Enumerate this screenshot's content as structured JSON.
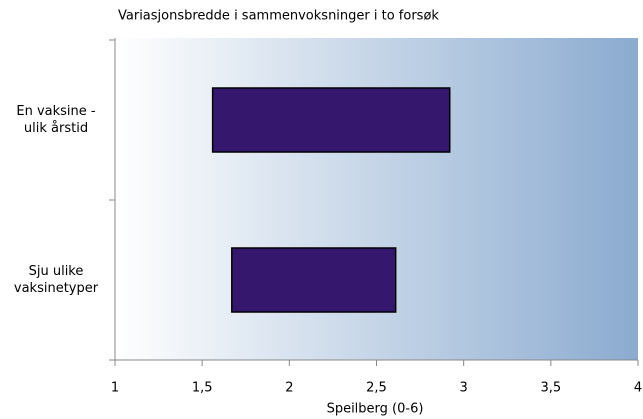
{
  "chart_data": {
    "type": "range-bar",
    "orientation": "horizontal",
    "title": "Variasjonsbredde i sammenvoksninger i to forsøk",
    "x_label": "Speilberg (0-6)",
    "categories": [
      "En vaksine - ulik årstid",
      "Sju ulike vaksinetyper"
    ],
    "values": [
      [
        1.56,
        2.92
      ],
      [
        1.67,
        2.61
      ]
    ],
    "color": "#35186e",
    "xlim": [
      1,
      4
    ],
    "xticks": [
      1,
      {
        "value": 1.5,
        "label": "1,5"
      },
      2,
      {
        "value": 2.5,
        "label": "2,5"
      },
      3,
      {
        "value": 3.5,
        "label": "3,5"
      },
      4
    ]
  }
}
